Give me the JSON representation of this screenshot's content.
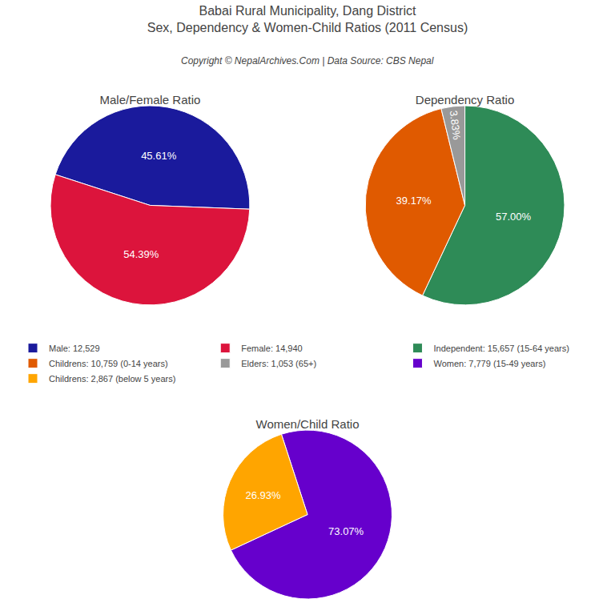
{
  "title": "Babai Rural Municipality, Dang District",
  "subtitle": "Sex, Dependency & Women-Child Ratios (2011 Census)",
  "annotations": [
    "Copyright © NepalArchives.Com | Data Source: CBS Nepal"
  ],
  "chart_data": [
    {
      "type": "pie",
      "title": "Male/Female Ratio",
      "categories": [
        "Male: 12,529",
        "Female: 14,940"
      ],
      "values": [
        45.61,
        54.39
      ],
      "value_labels": [
        "45.61%",
        "54.39%"
      ],
      "colors": [
        "#1a1a9c",
        "#dc143c"
      ],
      "legend": "center"
    },
    {
      "type": "pie",
      "title": "Dependency Ratio",
      "categories": [
        "Independent: 15,657 (15-64 years)",
        "Childrens: 10,759 (0-14 years)",
        "Elders: 1,053 (65+)"
      ],
      "values": [
        57.0,
        39.17,
        3.83
      ],
      "value_labels": [
        "57.00%",
        "39.17%",
        "3.83%"
      ],
      "colors": [
        "#2e8b57",
        "#e05a00",
        "#999999"
      ],
      "legend": "center"
    },
    {
      "type": "pie",
      "title": "Women/Child Ratio",
      "categories": [
        "Women: 7,779 (15-49 years)",
        "Childrens: 2,867 (below 5 years)"
      ],
      "values": [
        73.07,
        26.93
      ],
      "value_labels": [
        "73.07%",
        "26.93%"
      ],
      "colors": [
        "#6600cc",
        "#ffa500"
      ],
      "legend": "center"
    }
  ]
}
